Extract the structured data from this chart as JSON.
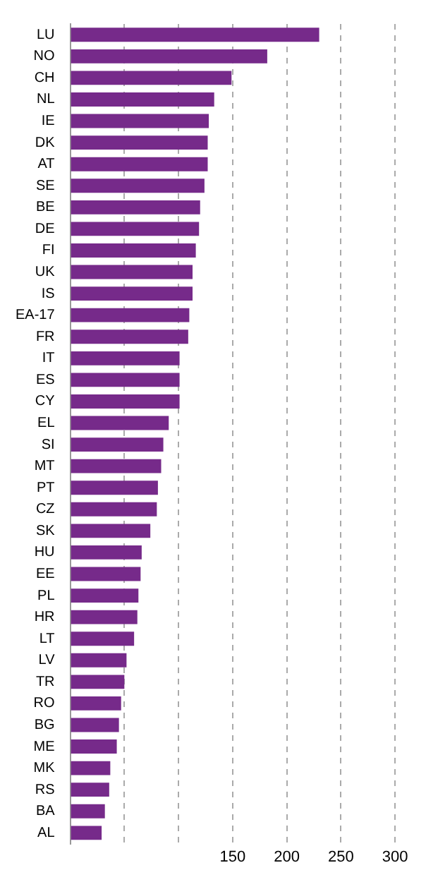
{
  "chart_data": {
    "type": "bar",
    "orientation": "horizontal",
    "categories": [
      "LU",
      "NO",
      "CH",
      "NL",
      "IE",
      "DK",
      "AT",
      "SE",
      "BE",
      "DE",
      "FI",
      "UK",
      "IS",
      "EA-17",
      "FR",
      "IT",
      "ES",
      "CY",
      "EL",
      "SI",
      "MT",
      "PT",
      "CZ",
      "SK",
      "HU",
      "EE",
      "PL",
      "HR",
      "LT",
      "LV",
      "TR",
      "RO",
      "BG",
      "ME",
      "MK",
      "RS",
      "BA",
      "AL"
    ],
    "values": [
      230,
      182,
      149,
      133,
      128,
      127,
      127,
      124,
      120,
      119,
      116,
      113,
      113,
      110,
      109,
      101,
      101,
      101,
      91,
      86,
      84,
      81,
      80,
      74,
      66,
      65,
      63,
      62,
      59,
      52,
      50,
      47,
      45,
      43,
      37,
      36,
      32,
      29
    ],
    "color": "#762a8a",
    "xlim": [
      0,
      300
    ],
    "xticks": [
      {
        "value": 0,
        "label": null
      },
      {
        "value": 50,
        "label": null
      },
      {
        "value": 100,
        "label": null
      },
      150,
      200,
      250,
      300
    ],
    "grid": "x"
  }
}
